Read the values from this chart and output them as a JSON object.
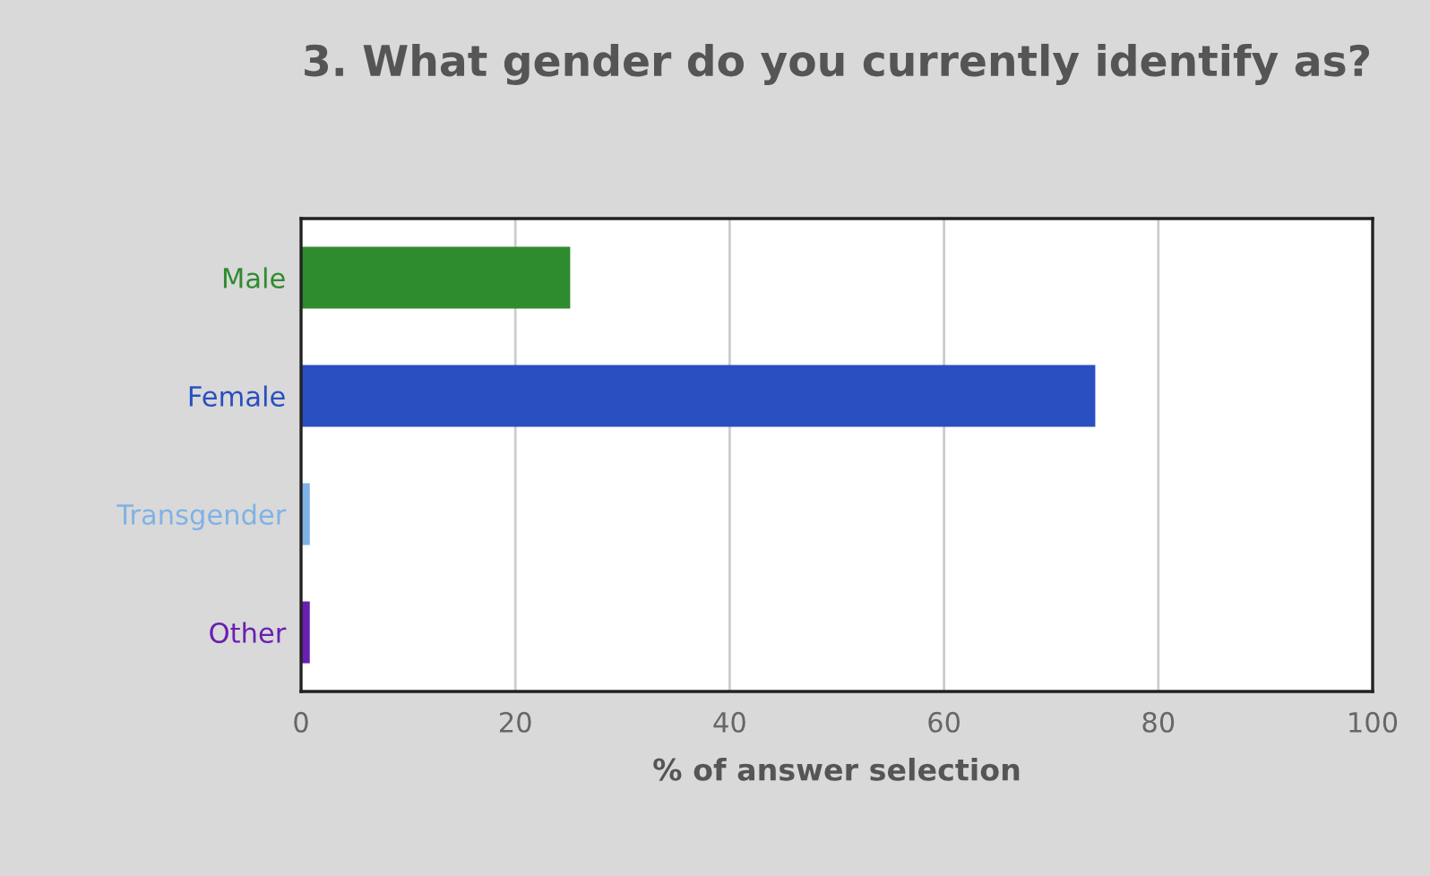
{
  "chart_data": {
    "type": "bar",
    "orientation": "horizontal",
    "title": "3. What gender do you currently identify as?",
    "categories": [
      "Male",
      "Female",
      "Transgender",
      "Other"
    ],
    "values": [
      25,
      74,
      0.7,
      0.7
    ],
    "colors": [
      "#2e8b2e",
      "#2a4fc0",
      "#7fb2e5",
      "#6a1fb0"
    ],
    "xlabel": "% of answer selection",
    "xlim": [
      0,
      100
    ],
    "xticks": [
      0,
      20,
      40,
      60,
      80,
      100
    ],
    "grid": "x",
    "legend": false
  }
}
